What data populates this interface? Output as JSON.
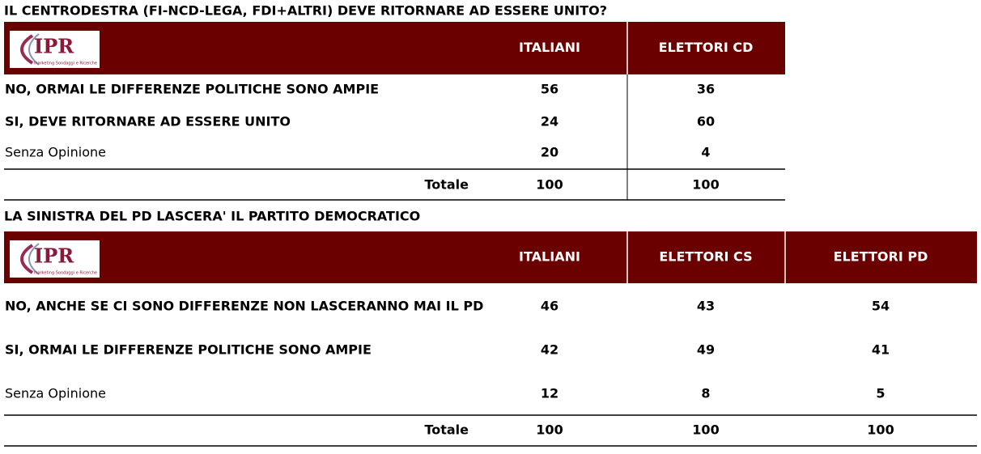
{
  "tables": [
    {
      "title": "IL CENTRODESTRA (FI-NCD-LEGA, FDI+ALTRI) DEVE RITORNARE AD ESSERE UNITO?",
      "logo": {
        "text": "IPR",
        "tagline": "marketing Sondaggi e Ricerche"
      },
      "columns": [
        "ITALIANI",
        "ELETTORI CD"
      ],
      "rows": [
        {
          "label": "NO, ORMAI LE DIFFERENZE POLITICHE SONO AMPIE",
          "values": [
            "56",
            "36"
          ]
        },
        {
          "label": "SI, DEVE RITORNARE AD ESSERE UNITO",
          "values": [
            "24",
            "60"
          ]
        },
        {
          "label": "Senza Opinione",
          "values": [
            "20",
            "4"
          ]
        }
      ],
      "total": {
        "label": "Totale",
        "values": [
          "100",
          "100"
        ]
      }
    },
    {
      "title": "LA SINISTRA DEL PD LASCERA' IL PARTITO DEMOCRATICO",
      "logo": {
        "text": "IPR",
        "tagline": "marketing Sondaggi e Ricerche"
      },
      "columns": [
        "ITALIANI",
        "ELETTORI CS",
        "ELETTORI PD"
      ],
      "rows": [
        {
          "label": "NO, ANCHE SE CI SONO DIFFERENZE NON LASCERANNO MAI IL PD",
          "values": [
            "46",
            "43",
            "54"
          ]
        },
        {
          "label": "SI, ORMAI LE DIFFERENZE POLITICHE SONO AMPIE",
          "values": [
            "42",
            "49",
            "41"
          ]
        },
        {
          "label": "Senza Opinione",
          "values": [
            "12",
            "8",
            "5"
          ]
        }
      ],
      "total": {
        "label": "Totale",
        "values": [
          "100",
          "100",
          "100"
        ]
      }
    }
  ]
}
